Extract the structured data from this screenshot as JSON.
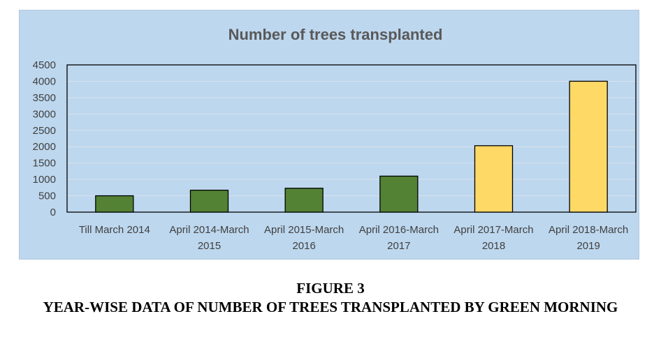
{
  "chart_data": {
    "type": "bar",
    "title": "Number of trees transplanted",
    "xlabel": "",
    "ylabel": "",
    "ylim": [
      0,
      4500
    ],
    "yticks": [
      0,
      500,
      1000,
      1500,
      2000,
      2500,
      3000,
      3500,
      4000,
      4500
    ],
    "grid": true,
    "legend": "none",
    "categories": [
      [
        "Till March 2014"
      ],
      [
        "April 2014-March",
        "2015"
      ],
      [
        "April 2015-March",
        "2016"
      ],
      [
        "April 2016-March",
        "2017"
      ],
      [
        "April 2017-March",
        "2018"
      ],
      [
        "April 2018-March",
        "2019"
      ]
    ],
    "values": [
      500,
      670,
      730,
      1100,
      2030,
      4000
    ],
    "bar_colors": [
      "#548235",
      "#548235",
      "#548235",
      "#548235",
      "#ffd966",
      "#ffd966"
    ],
    "background_color": "#bdd7ee"
  },
  "caption": {
    "figure_label": "FIGURE 3",
    "text": "YEAR-WISE DATA OF NUMBER OF TREES TRANSPLANTED BY GREEN MORNING"
  }
}
